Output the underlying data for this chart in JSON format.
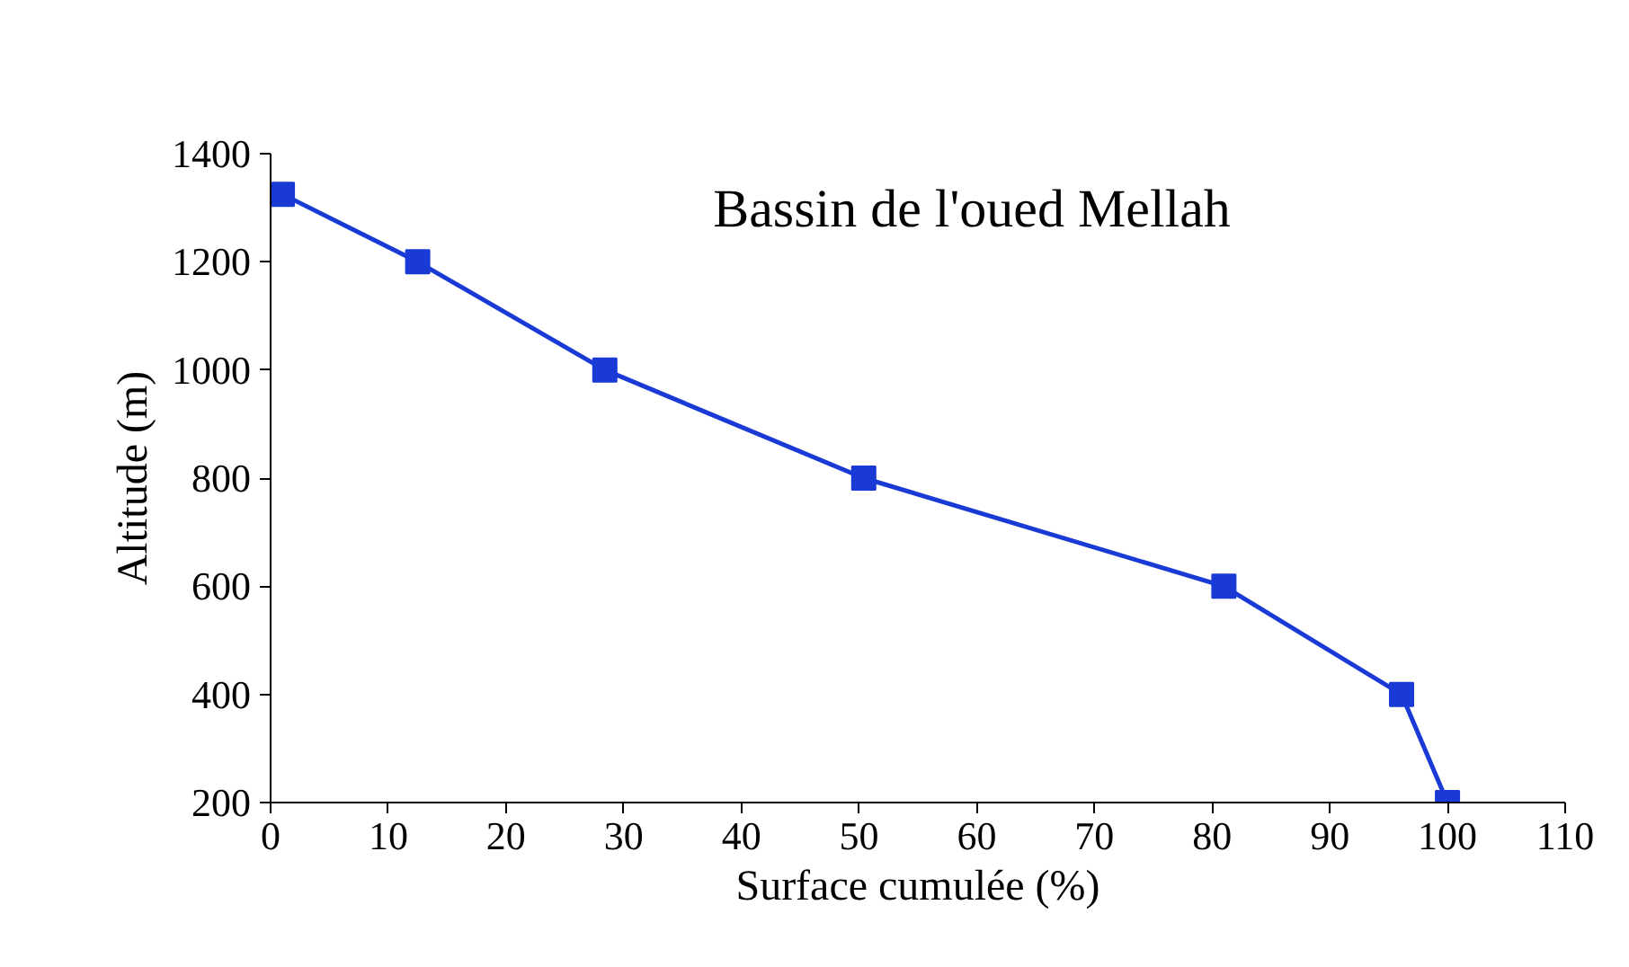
{
  "chart_data": {
    "type": "line",
    "title": "Bassin de l'oued Mellah",
    "xlabel": "Surface cumulée (%)",
    "ylabel": "Altitude (m)",
    "x": [
      1,
      12.5,
      28.4,
      50.4,
      81,
      96.1,
      100
    ],
    "series": [
      {
        "color": "#1a3ad6",
        "values": [
          1325,
          1200,
          1000,
          800,
          600,
          400,
          200
        ]
      }
    ],
    "xlim": [
      0,
      110
    ],
    "xticks": [
      0,
      10,
      20,
      30,
      40,
      50,
      60,
      70,
      80,
      90,
      100,
      110
    ],
    "ylim": [
      200,
      1400
    ],
    "yticks": [
      200,
      400,
      600,
      800,
      1000,
      1200,
      1400
    ],
    "marker": "square",
    "line_style": "solid",
    "grid": false
  }
}
